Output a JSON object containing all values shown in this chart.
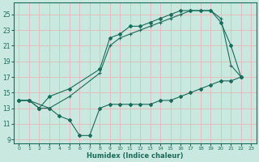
{
  "xlabel": "Humidex (Indice chaleur)",
  "bg_color": "#c8e8e0",
  "line_color": "#1a6b5a",
  "grid_color": "#e8b8b8",
  "xlim_min": -0.5,
  "xlim_max": 23.5,
  "ylim_min": 8.5,
  "ylim_max": 26.5,
  "xticks": [
    0,
    1,
    2,
    3,
    4,
    5,
    6,
    7,
    8,
    9,
    10,
    11,
    12,
    13,
    14,
    15,
    16,
    17,
    18,
    19,
    20,
    21,
    22,
    23
  ],
  "yticks": [
    9,
    11,
    13,
    15,
    17,
    19,
    21,
    23,
    25
  ],
  "line_bot_x": [
    0,
    1,
    2,
    3,
    4,
    5,
    6,
    7,
    8,
    9,
    10,
    11,
    12,
    13,
    14,
    15,
    16,
    17,
    18,
    19,
    20,
    21,
    22
  ],
  "line_bot_y": [
    14.0,
    14.0,
    13.0,
    13.0,
    12.0,
    11.5,
    9.5,
    9.5,
    13.0,
    13.5,
    13.5,
    13.5,
    13.5,
    13.5,
    14.0,
    14.0,
    14.5,
    15.0,
    15.5,
    16.0,
    16.5,
    16.5,
    17.0
  ],
  "line_top_x": [
    0,
    1,
    2,
    3,
    5,
    8,
    9,
    10,
    11,
    12,
    13,
    14,
    15,
    16,
    17,
    18,
    19,
    20,
    21,
    22
  ],
  "line_top_y": [
    14.0,
    14.0,
    13.0,
    14.5,
    15.5,
    18.0,
    22.0,
    22.5,
    23.5,
    23.5,
    24.0,
    24.5,
    25.0,
    25.5,
    25.5,
    25.5,
    25.5,
    24.0,
    21.0,
    17.0
  ],
  "line_mid_x": [
    0,
    1,
    3,
    5,
    8,
    9,
    10,
    11,
    12,
    13,
    14,
    15,
    16,
    17,
    18,
    19,
    20,
    21,
    22
  ],
  "line_mid_y": [
    14.0,
    14.0,
    13.0,
    14.5,
    17.5,
    21.0,
    22.0,
    22.5,
    23.0,
    23.5,
    24.0,
    24.5,
    25.0,
    25.5,
    25.5,
    25.5,
    24.5,
    18.5,
    17.0
  ]
}
